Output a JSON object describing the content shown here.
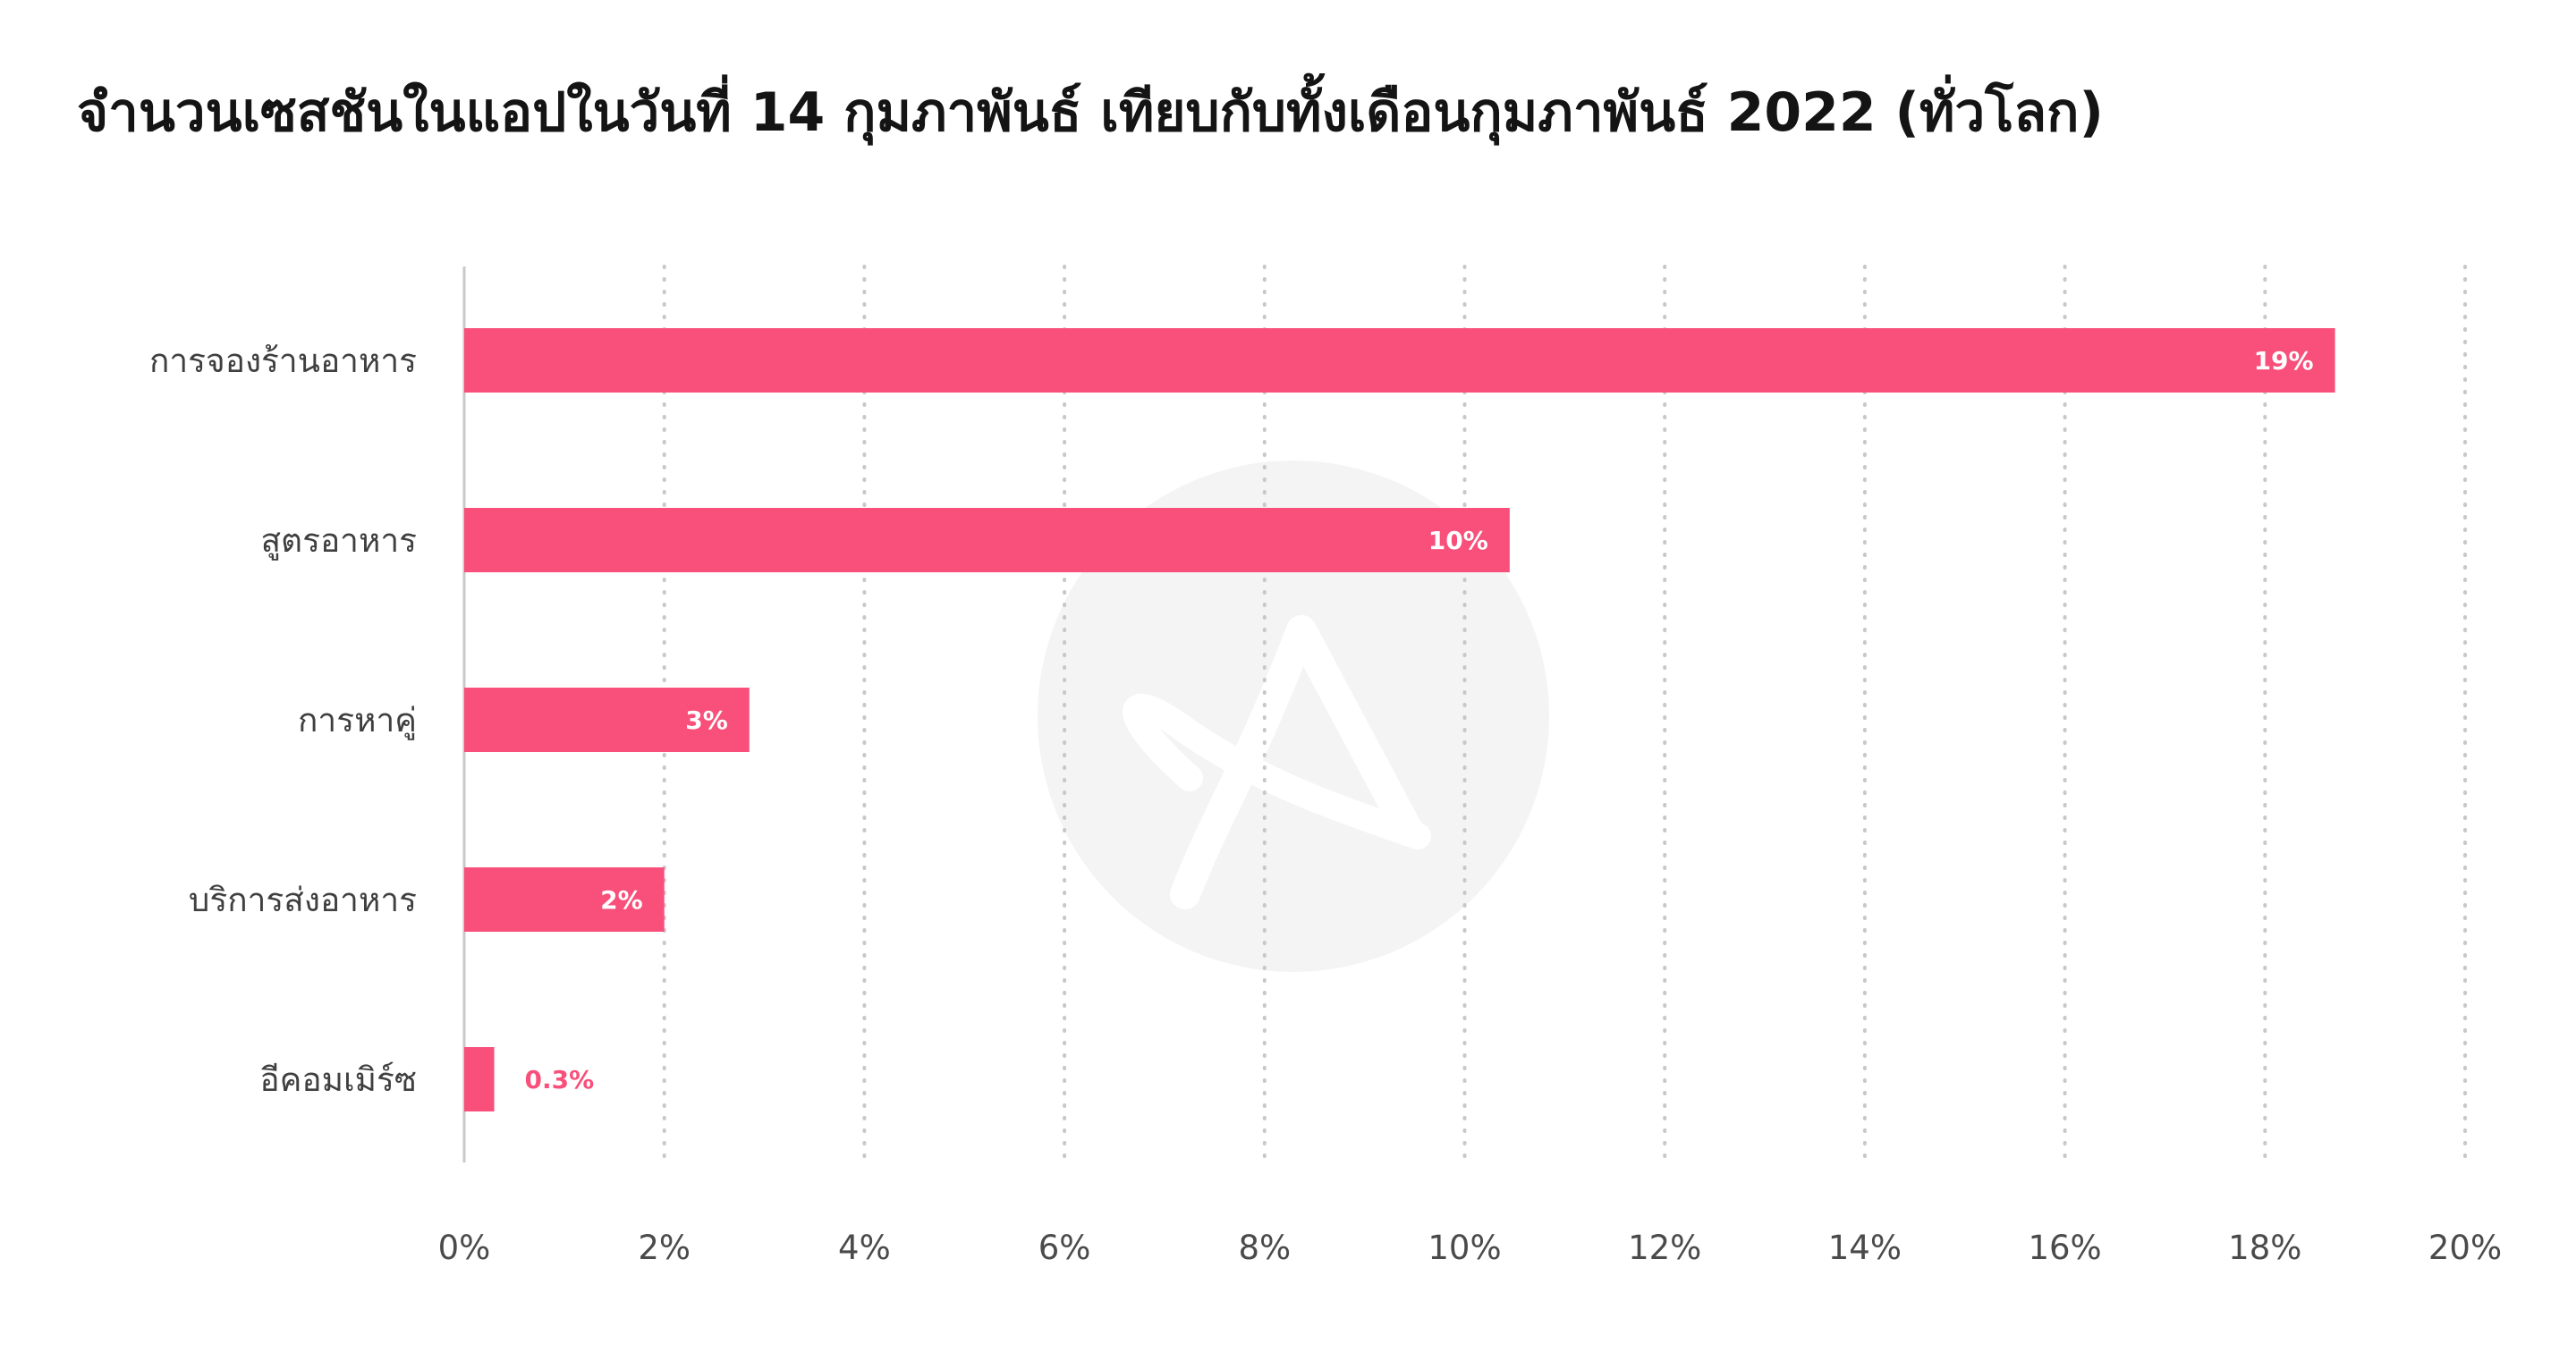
{
  "title": "จำนวนเซสชันในแอปในวันที่ 14 กุมภาพันธ์ เทียบกับทั้งเดือนกุมภาพันธ์ 2022 (ทั่วโลก)",
  "colors": {
    "bar": "#f8507a",
    "grid": "#c8c8c8",
    "axis": "#c9c9c9",
    "inside_label": "#ffffff",
    "outside_label": "#f8507a",
    "watermark": "#f4f4f4"
  },
  "watermark_icon": "app-logo-watermark-icon",
  "chart_data": {
    "type": "bar",
    "orientation": "horizontal",
    "categories": [
      "การจองร้านอาหาร",
      "สูตรอาหาร",
      "การหาคู่",
      "บริการส่งอาหาร",
      "อีคอมเมิร์ซ"
    ],
    "values": [
      18.7,
      10.45,
      2.85,
      2.0,
      0.3
    ],
    "data_labels": [
      "19%",
      "10%",
      "3%",
      "2%",
      "0.3%"
    ],
    "xlim": [
      0,
      20
    ],
    "xticks": [
      0,
      2,
      4,
      6,
      8,
      10,
      12,
      14,
      16,
      18,
      20
    ],
    "xtick_labels": [
      "0%",
      "2%",
      "4%",
      "6%",
      "8%",
      "10%",
      "12%",
      "14%",
      "16%",
      "18%",
      "20%"
    ],
    "grid": "vertical dotted",
    "legend": "none"
  }
}
